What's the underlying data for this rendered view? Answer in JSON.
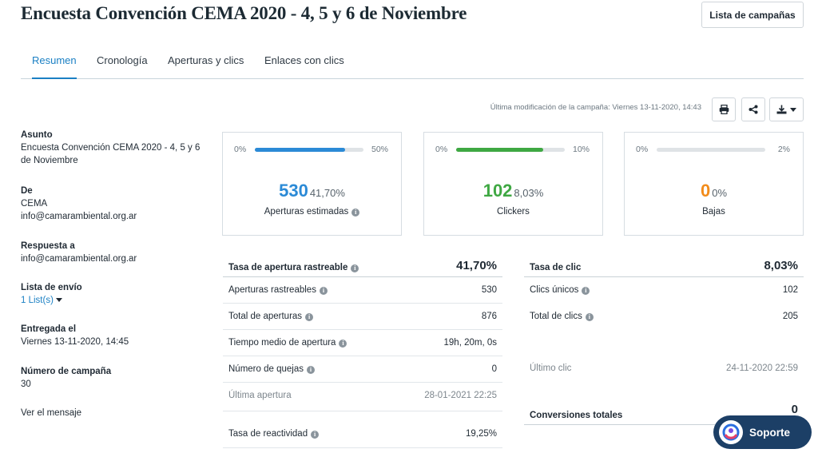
{
  "header": {
    "title": "Encuesta Convención CEMA 2020 - 4, 5 y 6 de Noviembre",
    "campaign_list_button": "Lista de campañas"
  },
  "tabs": [
    {
      "label": "Resumen",
      "active": true
    },
    {
      "label": "Cronología",
      "active": false
    },
    {
      "label": "Aperturas y clics",
      "active": false
    },
    {
      "label": "Enlaces con clics",
      "active": false
    }
  ],
  "toolbar": {
    "last_modified": "Última modificación de la campaña:  Viernes 13-11-2020, 14:43",
    "icons": [
      "print-icon",
      "share-icon",
      "download-icon"
    ]
  },
  "details": {
    "subject_label": "Asunto",
    "subject_value": "Encuesta Convención CEMA 2020 - 4, 5 y 6 de Noviembre",
    "from_label": "De",
    "from_name": "CEMA",
    "from_email": "info@camarambiental.org.ar",
    "reply_label": "Respuesta a",
    "reply_email": "info@camarambiental.org.ar",
    "list_label": "Lista de envío",
    "list_value": "1 List(s)",
    "sent_label": "Entregada el",
    "sent_value": "Viernes 13-11-2020, 14:45",
    "campaign_number_label": "Número de campaña",
    "campaign_number_value": "30",
    "view_message_link": "Ver el mensaje"
  },
  "cards": [
    {
      "min": "0%",
      "max": "50%",
      "fill_fraction": 0.834,
      "color": "#2b8ad6",
      "value": "530",
      "pct": "41,70%",
      "caption": "Aperturas estimadas",
      "info": true
    },
    {
      "min": "0%",
      "max": "10%",
      "fill_fraction": 0.803,
      "color": "#3fa843",
      "value": "102",
      "pct": "8,03%",
      "caption": "Clickers",
      "info": false
    },
    {
      "min": "0%",
      "max": "2%",
      "fill_fraction": 0.0,
      "color": "#f28c1b",
      "value": "0",
      "pct": "0%",
      "caption": "Bajas",
      "info": false
    }
  ],
  "opens_table": {
    "head_label": "Tasa de apertura rastreable",
    "head_value": "41,70%",
    "rows": [
      {
        "label": "Aperturas rastreables",
        "value": "530"
      },
      {
        "label": "Total de aperturas",
        "value": "876"
      },
      {
        "label": "Tiempo medio de apertura",
        "value": "19h, 20m, 0s"
      },
      {
        "label": "Número de quejas",
        "value": "0"
      },
      {
        "label": "Última apertura",
        "value": "28-01-2021 22:25"
      },
      {
        "label": "Tasa de reactividad",
        "value": "19,25%"
      }
    ]
  },
  "clicks_table": {
    "head_label": "Tasa de clic",
    "head_value": "8,03%",
    "rows": [
      {
        "label": "Clics únicos",
        "value": "102"
      },
      {
        "label": "Total de clics",
        "value": "205"
      },
      {
        "label": "Último clic",
        "value": "24-11-2020 22:59"
      },
      {
        "label": "Conversiones totales",
        "value": "0"
      }
    ]
  },
  "support": {
    "label": "Soporte"
  }
}
